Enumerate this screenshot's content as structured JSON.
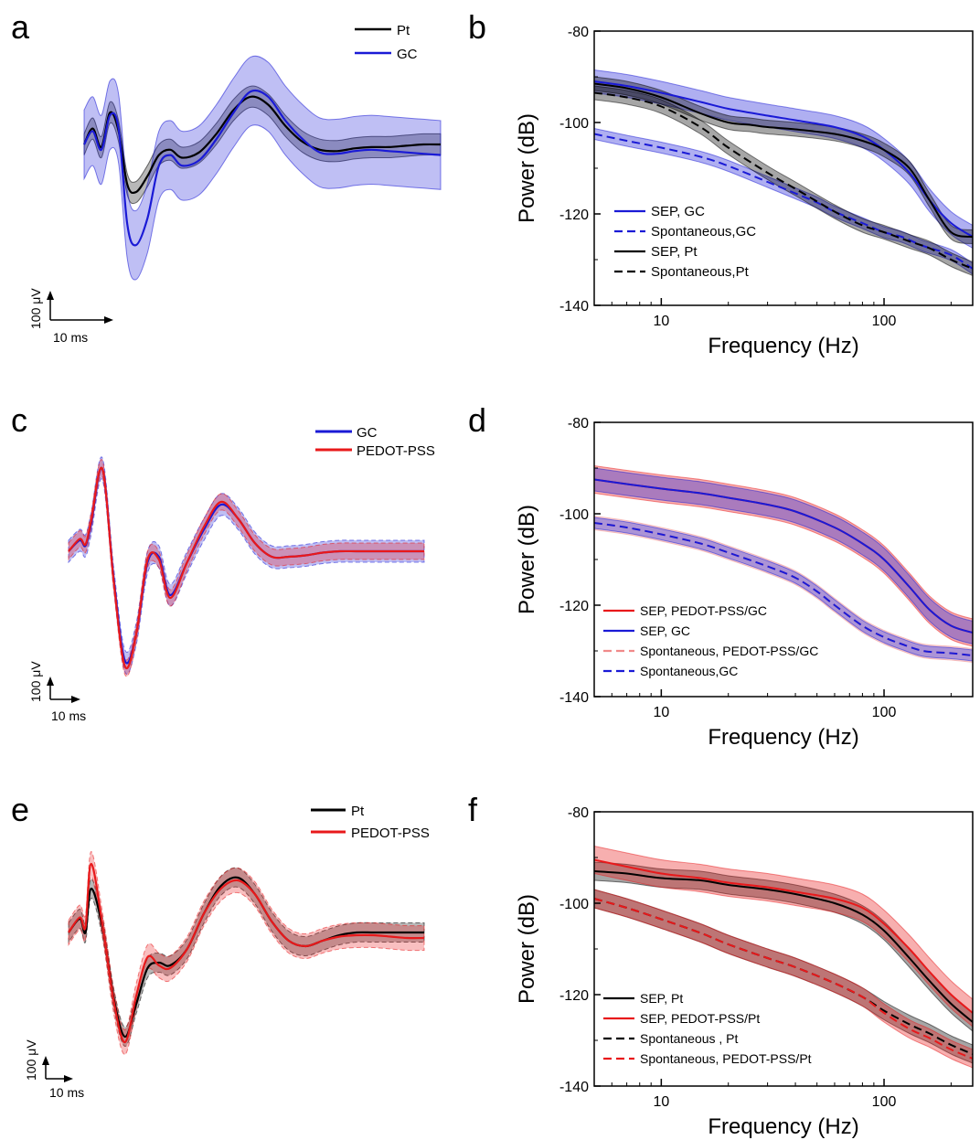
{
  "colors": {
    "pt": "#000000",
    "gc": "#1a1ad6",
    "pedot": "#e8191b",
    "pedot_light": "#f08a8a"
  },
  "panels": {
    "a": {
      "letter": "a",
      "legend": [
        "Pt",
        "GC"
      ],
      "scale_v": "100 μV",
      "scale_t": "10 ms"
    },
    "b": {
      "letter": "b"
    },
    "c": {
      "letter": "c",
      "legend": [
        "GC",
        "PEDOT-PSS"
      ],
      "scale_v": "100 μV",
      "scale_t": "10 ms"
    },
    "d": {
      "letter": "d"
    },
    "e": {
      "letter": "e",
      "legend": [
        "Pt",
        "PEDOT-PSS"
      ],
      "scale_v": "100 μV",
      "scale_t": "10 ms"
    },
    "f": {
      "letter": "f"
    }
  },
  "chart_data": [
    {
      "id": "b",
      "type": "line",
      "xlabel": "Frequency (Hz)",
      "ylabel": "Power (dB)",
      "xscale": "log",
      "xlim": [
        5,
        250
      ],
      "ylim": [
        -140,
        -80
      ],
      "xticks": [
        10,
        100
      ],
      "xtick_labels": [
        "10",
        "100"
      ],
      "yticks": [
        -140,
        -120,
        -100,
        -80
      ],
      "ytick_labels": [
        "-140",
        "-120",
        "-100",
        "-80"
      ],
      "legend_position": "bottom-left",
      "series": [
        {
          "name": "SEP, GC",
          "color": "#1a1ad6",
          "dash": false,
          "band": 2.5,
          "x": [
            5,
            7,
            10,
            15,
            20,
            30,
            40,
            60,
            80,
            100,
            130,
            160,
            200,
            250
          ],
          "y": [
            -91,
            -92,
            -93.5,
            -95.5,
            -97,
            -98.5,
            -99.5,
            -101,
            -103,
            -106,
            -111,
            -117,
            -122,
            -125
          ]
        },
        {
          "name": "Spontaneous,GC",
          "color": "#1a1ad6",
          "dash": true,
          "band": 1.2,
          "x": [
            5,
            7,
            10,
            15,
            20,
            30,
            40,
            50,
            60,
            80,
            100,
            120,
            150,
            200,
            250
          ],
          "y": [
            -102.5,
            -104,
            -105.5,
            -107.5,
            -109.5,
            -113,
            -115.5,
            -117.5,
            -119.5,
            -122,
            -124,
            -125,
            -127,
            -129,
            -132
          ]
        },
        {
          "name": "SEP, Pt",
          "color": "#000000",
          "dash": false,
          "band": 1.5,
          "x": [
            5,
            7,
            10,
            15,
            20,
            25,
            30,
            40,
            60,
            80,
            100,
            130,
            160,
            200,
            250
          ],
          "y": [
            -91.5,
            -92.5,
            -94.5,
            -98,
            -100,
            -100.5,
            -101,
            -101.5,
            -102.5,
            -104,
            -106,
            -110,
            -117,
            -124,
            -125
          ]
        },
        {
          "name": "Spontaneous,Pt",
          "color": "#000000",
          "dash": true,
          "band": 1.5,
          "x": [
            5,
            7,
            10,
            15,
            20,
            30,
            40,
            60,
            80,
            100,
            130,
            160,
            200,
            250
          ],
          "y": [
            -93.5,
            -94.5,
            -96.5,
            -101,
            -105.5,
            -111,
            -114.5,
            -119.5,
            -122.5,
            -124,
            -126,
            -127.5,
            -130,
            -132
          ]
        }
      ]
    },
    {
      "id": "d",
      "type": "line",
      "xlabel": "Frequency (Hz)",
      "ylabel": "Power (dB)",
      "xscale": "log",
      "xlim": [
        5,
        250
      ],
      "ylim": [
        -140,
        -80
      ],
      "xticks": [
        10,
        100
      ],
      "xtick_labels": [
        "10",
        "100"
      ],
      "yticks": [
        -140,
        -120,
        -100,
        -80
      ],
      "ytick_labels": [
        "-140",
        "-120",
        "-100",
        "-80"
      ],
      "legend_position": "bottom-left",
      "series": [
        {
          "name": "SEP, PEDOT-PSS/GC",
          "color": "#e8191b",
          "dash": false,
          "band": 3,
          "x": [
            5,
            7,
            10,
            15,
            20,
            30,
            40,
            60,
            80,
            100,
            130,
            160,
            200,
            250
          ],
          "y": [
            -92.5,
            -93.5,
            -94.5,
            -95.5,
            -96.5,
            -98,
            -99.5,
            -103,
            -106.5,
            -110,
            -116,
            -121,
            -124.5,
            -126
          ]
        },
        {
          "name": "SEP, GC",
          "color": "#1a1ad6",
          "dash": false,
          "band": 2.5,
          "x": [
            5,
            7,
            10,
            15,
            20,
            30,
            40,
            60,
            80,
            100,
            130,
            160,
            200,
            250
          ],
          "y": [
            -92.5,
            -93.5,
            -94.5,
            -95.5,
            -96.5,
            -98,
            -99.5,
            -103,
            -106.5,
            -110,
            -116,
            -121,
            -124.5,
            -126
          ]
        },
        {
          "name": "Spontaneous, PEDOT-PSS/GC",
          "color": "#f08a8a",
          "dash": true,
          "band": 1.5,
          "x": [
            5,
            7,
            10,
            15,
            20,
            30,
            40,
            50,
            60,
            80,
            100,
            120,
            150,
            200,
            250
          ],
          "y": [
            -102,
            -103,
            -104.5,
            -106.5,
            -108.5,
            -111.5,
            -114,
            -117,
            -120,
            -124.5,
            -127,
            -128.5,
            -130,
            -130.5,
            -131
          ]
        },
        {
          "name": "Spontaneous,GC",
          "color": "#1a1ad6",
          "dash": true,
          "band": 1.2,
          "x": [
            5,
            7,
            10,
            15,
            20,
            30,
            40,
            50,
            60,
            80,
            100,
            120,
            150,
            200,
            250
          ],
          "y": [
            -102,
            -103,
            -104.5,
            -106.5,
            -108.5,
            -111.5,
            -114,
            -117,
            -120,
            -124.5,
            -127,
            -128.5,
            -130,
            -130.5,
            -131
          ]
        }
      ]
    },
    {
      "id": "f",
      "type": "line",
      "xlabel": "Frequency (Hz)",
      "ylabel": "Power (dB)",
      "xscale": "log",
      "xlim": [
        5,
        250
      ],
      "ylim": [
        -140,
        -80
      ],
      "xticks": [
        10,
        100
      ],
      "xtick_labels": [
        "10",
        "100"
      ],
      "yticks": [
        -140,
        -120,
        -100,
        -80
      ],
      "ytick_labels": [
        "-140",
        "-120",
        "-100",
        "-80"
      ],
      "legend_position": "bottom-left",
      "series": [
        {
          "name": "SEP, Pt",
          "color": "#000000",
          "dash": false,
          "band": 2,
          "x": [
            5,
            7,
            10,
            15,
            20,
            30,
            40,
            60,
            80,
            100,
            130,
            160,
            200,
            250
          ],
          "y": [
            -93,
            -93.5,
            -94.5,
            -95,
            -96,
            -97,
            -98,
            -100,
            -102.5,
            -106,
            -112,
            -117,
            -122,
            -126
          ]
        },
        {
          "name": "SEP, PEDOT-PSS/Pt",
          "color": "#e8191b",
          "dash": false,
          "band": 3,
          "x": [
            5,
            7,
            10,
            15,
            20,
            30,
            40,
            60,
            80,
            100,
            130,
            160,
            200,
            250
          ],
          "y": [
            -90.5,
            -92,
            -93.5,
            -94.5,
            -95.5,
            -96.5,
            -97.5,
            -99,
            -101,
            -104.5,
            -110,
            -115,
            -120,
            -124
          ]
        },
        {
          "name": "Spontaneous , Pt",
          "color": "#000000",
          "dash": true,
          "band": 2,
          "x": [
            5,
            7,
            10,
            15,
            20,
            30,
            40,
            60,
            80,
            100,
            130,
            160,
            200,
            250
          ],
          "y": [
            -99,
            -101,
            -103.5,
            -106.5,
            -109,
            -112,
            -114,
            -117.5,
            -120.5,
            -123.5,
            -126.5,
            -128.5,
            -131,
            -133
          ]
        },
        {
          "name": "Spontaneous, PEDOT-PSS/Pt",
          "color": "#e8191b",
          "dash": true,
          "band": 2,
          "x": [
            5,
            7,
            10,
            15,
            20,
            30,
            40,
            60,
            80,
            100,
            130,
            160,
            200,
            250
          ],
          "y": [
            -99,
            -101,
            -103.5,
            -106.5,
            -109,
            -112,
            -114,
            -117.5,
            -120.5,
            -124,
            -127.5,
            -129.5,
            -132,
            -134
          ]
        }
      ]
    },
    {
      "id": "a",
      "type": "line",
      "xunit": "ms",
      "yunit": "μV",
      "series": [
        {
          "name": "Pt",
          "color": "#000000",
          "band": 40,
          "x": [
            0,
            1.5,
            3,
            4.5,
            6,
            7.5,
            9,
            11,
            13,
            15,
            17,
            20,
            23,
            26,
            29,
            32,
            35,
            38,
            41,
            44,
            47,
            50,
            53,
            56,
            59,
            62
          ],
          "y": [
            0,
            60,
            -10,
            120,
            50,
            -150,
            -180,
            -120,
            -40,
            -20,
            -50,
            -30,
            40,
            130,
            180,
            150,
            70,
            10,
            -20,
            -25,
            -15,
            -10,
            -10,
            -5,
            0,
            0
          ]
        },
        {
          "name": "GC",
          "color": "#1a1ad6",
          "band": 130,
          "x": [
            0,
            1.5,
            3,
            4.5,
            6,
            7.5,
            9,
            11,
            13,
            15,
            17,
            20,
            23,
            26,
            29,
            32,
            35,
            38,
            41,
            44,
            47,
            50,
            53,
            56,
            59,
            62
          ],
          "y": [
            0,
            50,
            -20,
            110,
            60,
            -300,
            -380,
            -280,
            -80,
            -40,
            -80,
            -60,
            20,
            120,
            200,
            180,
            90,
            20,
            -30,
            -35,
            -25,
            -20,
            -25,
            -30,
            -35,
            -40
          ]
        }
      ]
    },
    {
      "id": "c",
      "type": "line",
      "xunit": "ms",
      "yunit": "μV",
      "series": [
        {
          "name": "GC",
          "color": "#1a1ad6",
          "band": 40,
          "x": [
            0,
            2,
            3,
            4,
            6,
            8,
            10,
            12,
            14,
            16,
            18,
            21,
            24,
            27,
            30,
            33,
            36,
            39,
            42,
            45,
            48,
            51,
            54,
            57,
            60,
            63
          ],
          "y": [
            0,
            40,
            20,
            100,
            300,
            -100,
            -400,
            -300,
            -40,
            -20,
            -160,
            -40,
            80,
            170,
            120,
            30,
            -20,
            -20,
            -15,
            -5,
            0,
            0,
            0,
            0,
            0,
            0
          ]
        },
        {
          "name": "PEDOT-PSS",
          "color": "#e8191b",
          "band": 30,
          "x": [
            0,
            2,
            3,
            4,
            6,
            8,
            10,
            12,
            14,
            16,
            18,
            21,
            24,
            27,
            30,
            33,
            36,
            39,
            42,
            45,
            48,
            51,
            54,
            57,
            60,
            63
          ],
          "y": [
            0,
            45,
            25,
            110,
            300,
            -110,
            -420,
            -300,
            -30,
            -30,
            -170,
            -40,
            90,
            180,
            120,
            30,
            -20,
            -20,
            -15,
            -5,
            0,
            0,
            0,
            0,
            0,
            0
          ]
        }
      ]
    },
    {
      "id": "e",
      "type": "line",
      "xunit": "ms",
      "yunit": "μV",
      "series": [
        {
          "name": "Pt",
          "color": "#000000",
          "band": 35,
          "x": [
            0,
            2,
            3,
            4,
            6,
            8,
            10,
            12,
            14,
            16,
            18,
            21,
            24,
            27,
            30,
            33,
            36,
            39,
            42,
            45,
            48,
            51,
            54,
            57,
            60,
            63
          ],
          "y": [
            0,
            50,
            0,
            160,
            20,
            -240,
            -380,
            -260,
            -130,
            -110,
            -120,
            -60,
            70,
            170,
            200,
            140,
            40,
            -30,
            -50,
            -30,
            -10,
            0,
            0,
            0,
            0,
            0
          ]
        },
        {
          "name": "PEDOT-PSS",
          "color": "#e8191b",
          "band": 45,
          "x": [
            0,
            2,
            3,
            4,
            6,
            8,
            10,
            12,
            14,
            16,
            18,
            21,
            24,
            27,
            30,
            33,
            36,
            39,
            42,
            45,
            48,
            51,
            54,
            57,
            60,
            63
          ],
          "y": [
            0,
            55,
            20,
            250,
            30,
            -250,
            -400,
            -230,
            -90,
            -120,
            -130,
            -60,
            70,
            160,
            190,
            140,
            40,
            -30,
            -50,
            -30,
            -15,
            -10,
            -10,
            -15,
            -20,
            -20
          ]
        }
      ]
    }
  ]
}
